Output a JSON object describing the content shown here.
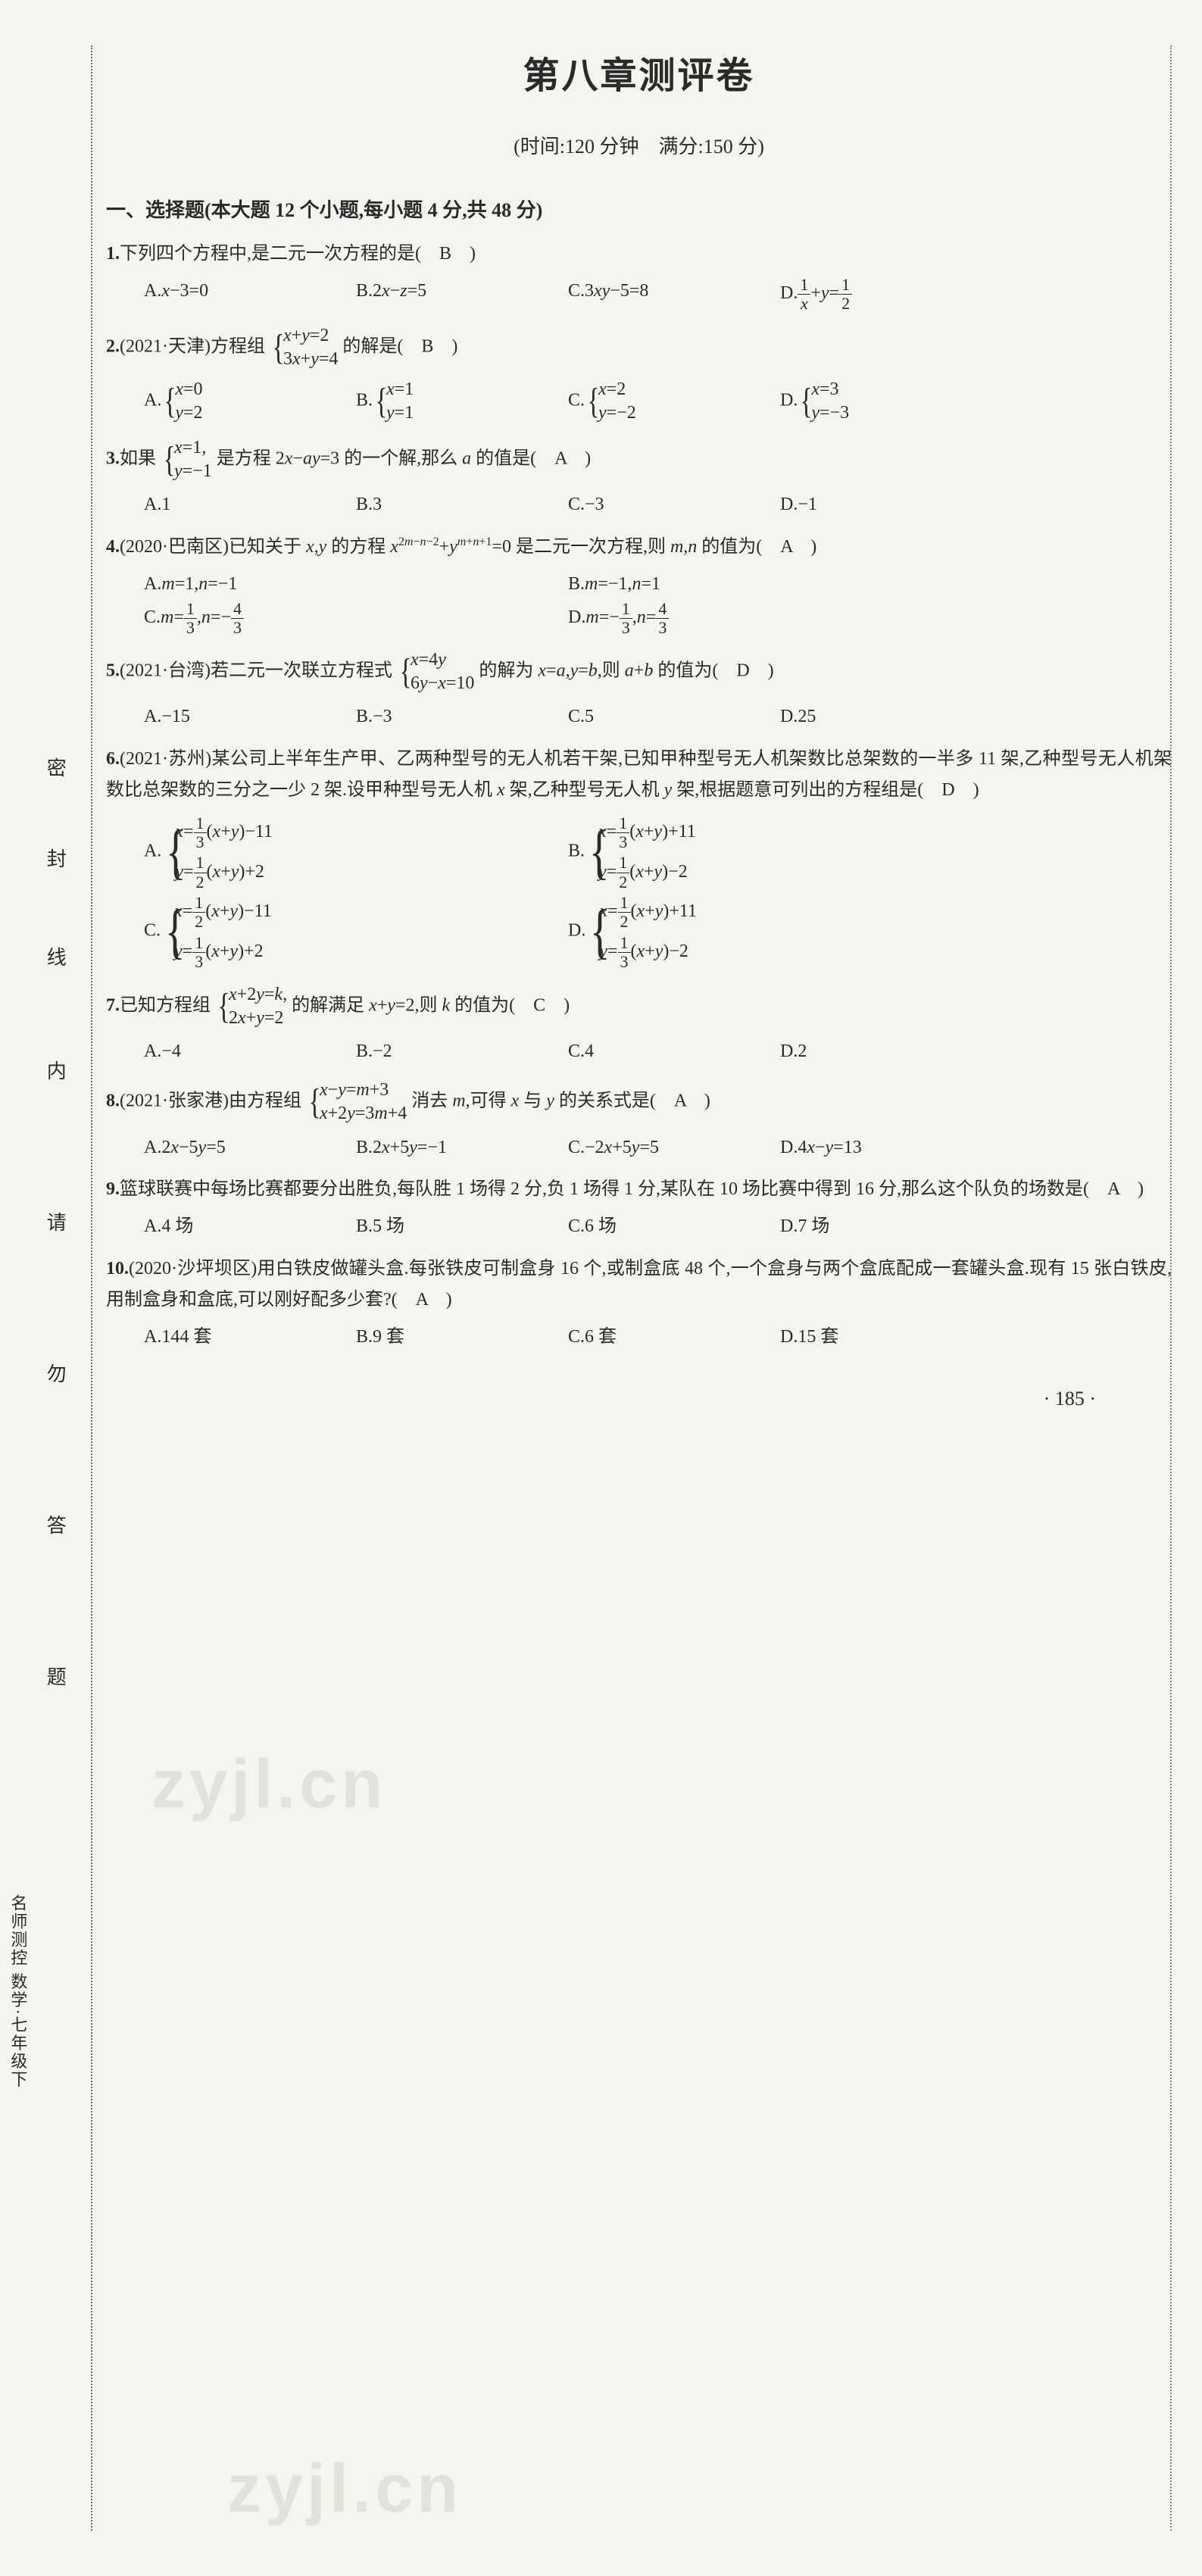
{
  "title": "第八章测评卷",
  "subtitle": "(时间:120 分钟　满分:150 分)",
  "section_header": "一、选择题(本大题 12 个小题,每小题 4 分,共 48 分)",
  "seal_chars": [
    "密",
    "封",
    "线",
    "内",
    "请",
    "勿",
    "答",
    "题"
  ],
  "side_book": "名师测控 数学·七年级下",
  "page_number": "· 185 ·",
  "watermark": "zyjl.cn",
  "questions": [
    {
      "num": "1.",
      "stem": "下列四个方程中,是二元一次方程的是(　B　)",
      "options": [
        {
          "label": "A.",
          "text": "x−3=0"
        },
        {
          "label": "B.",
          "text": "2x−z=5"
        },
        {
          "label": "C.",
          "text": "3xy−5=8"
        },
        {
          "label": "D.",
          "text": "1/x + y = 1/2"
        }
      ]
    },
    {
      "num": "2.",
      "stem_pre": "(2021·天津)方程组",
      "system": [
        "x+y=2",
        "3x+y=4"
      ],
      "stem_post": "的解是(　B　)",
      "options": [
        {
          "label": "A.",
          "sys": [
            "x=0",
            "y=2"
          ]
        },
        {
          "label": "B.",
          "sys": [
            "x=1",
            "y=1"
          ]
        },
        {
          "label": "C.",
          "sys": [
            "x=2",
            "y=−2"
          ]
        },
        {
          "label": "D.",
          "sys": [
            "x=3",
            "y=−3"
          ]
        }
      ]
    },
    {
      "num": "3.",
      "stem_pre": "如果",
      "system": [
        "x=1,",
        "y=−1"
      ],
      "stem_post": "是方程 2x−ay=3 的一个解,那么 a 的值是(　A　)",
      "options": [
        {
          "label": "A.",
          "text": "1"
        },
        {
          "label": "B.",
          "text": "3"
        },
        {
          "label": "C.",
          "text": "−3"
        },
        {
          "label": "D.",
          "text": "−1"
        }
      ]
    },
    {
      "num": "4.",
      "stem": "(2020·巴南区)已知关于 x,y 的方程 x^{2m−n−2}+y^{m+n+1}=0 是二元一次方程,则 m,n 的值为(　A　)",
      "options": [
        {
          "label": "A.",
          "text": "m=1, n=−1"
        },
        {
          "label": "B.",
          "text": "m=−1, n=1"
        },
        {
          "label": "C.",
          "text": "m=1/3, n=−4/3"
        },
        {
          "label": "D.",
          "text": "m=−1/3, n=4/3"
        }
      ]
    },
    {
      "num": "5.",
      "stem_pre": "(2021·台湾)若二元一次联立方程式",
      "system": [
        "x=4y",
        "6y−x=10"
      ],
      "stem_post": "的解为 x=a, y=b, 则 a+b 的值为(　D　)",
      "options": [
        {
          "label": "A.",
          "text": "−15"
        },
        {
          "label": "B.",
          "text": "−3"
        },
        {
          "label": "C.",
          "text": "5"
        },
        {
          "label": "D.",
          "text": "25"
        }
      ]
    },
    {
      "num": "6.",
      "stem": "(2021·苏州)某公司上半年生产甲、乙两种型号的无人机若干架,已知甲种型号无人机架数比总架数的一半多 11 架,乙种型号无人机架数比总架数的三分之一少 2 架.设甲种型号无人机 x 架,乙种型号无人机 y 架,根据题意可列出的方程组是(　D　)",
      "options": [
        {
          "label": "A.",
          "sys": [
            "x=(1/3)(x+y)−11",
            "y=(1/2)(x+y)+2"
          ]
        },
        {
          "label": "B.",
          "sys": [
            "x=(1/3)(x+y)+11",
            "y=(1/2)(x+y)−2"
          ]
        },
        {
          "label": "C.",
          "sys": [
            "x=(1/2)(x+y)−11",
            "y=(1/3)(x+y)+2"
          ]
        },
        {
          "label": "D.",
          "sys": [
            "x=(1/2)(x+y)+11",
            "y=(1/3)(x+y)−2"
          ]
        }
      ]
    },
    {
      "num": "7.",
      "stem_pre": "已知方程组",
      "system": [
        "x+2y=k,",
        "2x+y=2"
      ],
      "stem_post": "的解满足 x+y=2,则 k 的值为(　C　)",
      "options": [
        {
          "label": "A.",
          "text": "−4"
        },
        {
          "label": "B.",
          "text": "−2"
        },
        {
          "label": "C.",
          "text": "4"
        },
        {
          "label": "D.",
          "text": "2"
        }
      ]
    },
    {
      "num": "8.",
      "stem_pre": "(2021·张家港)由方程组",
      "system": [
        "x−y=m+3",
        "x+2y=3m+4"
      ],
      "stem_post": "消去 m,可得 x 与 y 的关系式是(　A　)",
      "options": [
        {
          "label": "A.",
          "text": "2x−5y=5"
        },
        {
          "label": "B.",
          "text": "2x+5y=−1"
        },
        {
          "label": "C.",
          "text": "−2x+5y=5"
        },
        {
          "label": "D.",
          "text": "4x−y=13"
        }
      ]
    },
    {
      "num": "9.",
      "stem": "篮球联赛中每场比赛都要分出胜负,每队胜 1 场得 2 分,负 1 场得 1 分,某队在 10 场比赛中得到 16 分,那么这个队负的场数是(　A　)",
      "options": [
        {
          "label": "A.",
          "text": "4 场"
        },
        {
          "label": "B.",
          "text": "5 场"
        },
        {
          "label": "C.",
          "text": "6 场"
        },
        {
          "label": "D.",
          "text": "7 场"
        }
      ]
    },
    {
      "num": "10.",
      "stem": "(2020·沙坪坝区)用白铁皮做罐头盒.每张铁皮可制盒身 16 个,或制盒底 48 个,一个盒身与两个盒底配成一套罐头盒.现有 15 张白铁皮,用制盒身和盒底,可以刚好配多少套?(　A　)",
      "options": [
        {
          "label": "A.",
          "text": "144 套"
        },
        {
          "label": "B.",
          "text": "9 套"
        },
        {
          "label": "C.",
          "text": "6 套"
        },
        {
          "label": "D.",
          "text": "15 套"
        }
      ]
    }
  ]
}
